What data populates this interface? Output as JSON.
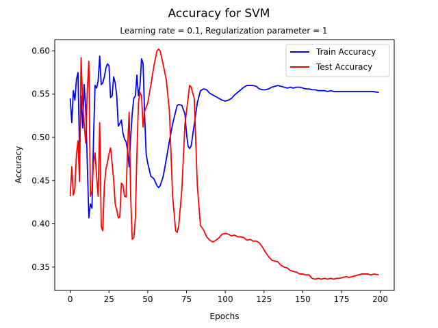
{
  "chart_data": {
    "type": "line",
    "title": "Accuracy for SVM",
    "subtitle": "Learning rate = 0.1, Regularization parameter = 1",
    "xlabel": "Epochs",
    "ylabel": "Accuracy",
    "xlim": [
      -10,
      209
    ],
    "ylim": [
      0.323,
      0.613
    ],
    "xticks": [
      0,
      25,
      50,
      75,
      100,
      125,
      150,
      175,
      200
    ],
    "yticks": [
      0.35,
      0.4,
      0.45,
      0.5,
      0.55,
      0.6
    ],
    "ytick_labels": [
      "0.35",
      "0.40",
      "0.45",
      "0.50",
      "0.55",
      "0.60"
    ],
    "grid": false,
    "legend_position": "top-right",
    "series": [
      {
        "name": "Train Accuracy",
        "color": "#0000ff",
        "points": [
          [
            0,
            0.545
          ],
          [
            1,
            0.517
          ],
          [
            2,
            0.554
          ],
          [
            3,
            0.543
          ],
          [
            4,
            0.567
          ],
          [
            5,
            0.575
          ],
          [
            6,
            0.482
          ],
          [
            7,
            0.548
          ],
          [
            8,
            0.511
          ],
          [
            9,
            0.561
          ],
          [
            10,
            0.532
          ],
          [
            11,
            0.47
          ],
          [
            12,
            0.407
          ],
          [
            13,
            0.423
          ],
          [
            14,
            0.418
          ],
          [
            15,
            0.497
          ],
          [
            16,
            0.56
          ],
          [
            17,
            0.557
          ],
          [
            18,
            0.565
          ],
          [
            19,
            0.594
          ],
          [
            20,
            0.561
          ],
          [
            21,
            0.563
          ],
          [
            22,
            0.57
          ],
          [
            23,
            0.58
          ],
          [
            24,
            0.585
          ],
          [
            25,
            0.583
          ],
          [
            26,
            0.546
          ],
          [
            27,
            0.548
          ],
          [
            28,
            0.57
          ],
          [
            29,
            0.563
          ],
          [
            30,
            0.548
          ],
          [
            31,
            0.513
          ],
          [
            32,
            0.516
          ],
          [
            33,
            0.52
          ],
          [
            34,
            0.505
          ],
          [
            35,
            0.498
          ],
          [
            36,
            0.495
          ],
          [
            37,
            0.485
          ],
          [
            38,
            0.466
          ],
          [
            39,
            0.5
          ],
          [
            40,
            0.528
          ],
          [
            41,
            0.545
          ],
          [
            42,
            0.548
          ],
          [
            43,
            0.572
          ],
          [
            44,
            0.548
          ],
          [
            45,
            0.56
          ],
          [
            46,
            0.591
          ],
          [
            47,
            0.585
          ],
          [
            48,
            0.525
          ],
          [
            49,
            0.48
          ],
          [
            50,
            0.47
          ],
          [
            52,
            0.455
          ],
          [
            54,
            0.452
          ],
          [
            56,
            0.444
          ],
          [
            57,
            0.442
          ],
          [
            58,
            0.444
          ],
          [
            60,
            0.455
          ],
          [
            62,
            0.475
          ],
          [
            64,
            0.496
          ],
          [
            66,
            0.515
          ],
          [
            68,
            0.53
          ],
          [
            69,
            0.537
          ],
          [
            70,
            0.538
          ],
          [
            72,
            0.537
          ],
          [
            74,
            0.527
          ],
          [
            75,
            0.505
          ],
          [
            76,
            0.49
          ],
          [
            77,
            0.487
          ],
          [
            78,
            0.49
          ],
          [
            80,
            0.515
          ],
          [
            82,
            0.54
          ],
          [
            84,
            0.554
          ],
          [
            86,
            0.556
          ],
          [
            88,
            0.555
          ],
          [
            90,
            0.551
          ],
          [
            92,
            0.549
          ],
          [
            94,
            0.547
          ],
          [
            96,
            0.545
          ],
          [
            98,
            0.543
          ],
          [
            100,
            0.542
          ],
          [
            102,
            0.543
          ],
          [
            104,
            0.545
          ],
          [
            106,
            0.549
          ],
          [
            108,
            0.552
          ],
          [
            110,
            0.555
          ],
          [
            112,
            0.558
          ],
          [
            114,
            0.56
          ],
          [
            116,
            0.56
          ],
          [
            118,
            0.56
          ],
          [
            120,
            0.559
          ],
          [
            122,
            0.556
          ],
          [
            124,
            0.555
          ],
          [
            126,
            0.555
          ],
          [
            128,
            0.556
          ],
          [
            130,
            0.558
          ],
          [
            132,
            0.559
          ],
          [
            134,
            0.56
          ],
          [
            136,
            0.559
          ],
          [
            138,
            0.558
          ],
          [
            140,
            0.557
          ],
          [
            142,
            0.558
          ],
          [
            144,
            0.557
          ],
          [
            146,
            0.558
          ],
          [
            148,
            0.558
          ],
          [
            150,
            0.557
          ],
          [
            152,
            0.556
          ],
          [
            154,
            0.556
          ],
          [
            156,
            0.555
          ],
          [
            158,
            0.555
          ],
          [
            160,
            0.554
          ],
          [
            162,
            0.554
          ],
          [
            164,
            0.554
          ],
          [
            166,
            0.553
          ],
          [
            168,
            0.554
          ],
          [
            170,
            0.553
          ],
          [
            175,
            0.553
          ],
          [
            180,
            0.553
          ],
          [
            185,
            0.553
          ],
          [
            190,
            0.553
          ],
          [
            195,
            0.553
          ],
          [
            199,
            0.552
          ]
        ]
      },
      {
        "name": "Test Accuracy",
        "color": "#ff0000",
        "points": [
          [
            0,
            0.432
          ],
          [
            1,
            0.466
          ],
          [
            2,
            0.433
          ],
          [
            3,
            0.441
          ],
          [
            4,
            0.48
          ],
          [
            5,
            0.496
          ],
          [
            6,
            0.449
          ],
          [
            7,
            0.592
          ],
          [
            8,
            0.54
          ],
          [
            9,
            0.515
          ],
          [
            10,
            0.493
          ],
          [
            11,
            0.555
          ],
          [
            12,
            0.588
          ],
          [
            13,
            0.432
          ],
          [
            14,
            0.438
          ],
          [
            15,
            0.47
          ],
          [
            16,
            0.482
          ],
          [
            17,
            0.455
          ],
          [
            18,
            0.432
          ],
          [
            19,
            0.517
          ],
          [
            20,
            0.397
          ],
          [
            21,
            0.392
          ],
          [
            22,
            0.444
          ],
          [
            23,
            0.463
          ],
          [
            24,
            0.471
          ],
          [
            25,
            0.481
          ],
          [
            26,
            0.488
          ],
          [
            27,
            0.47
          ],
          [
            28,
            0.451
          ],
          [
            29,
            0.423
          ],
          [
            30,
            0.416
          ],
          [
            31,
            0.407
          ],
          [
            32,
            0.408
          ],
          [
            33,
            0.447
          ],
          [
            34,
            0.445
          ],
          [
            35,
            0.432
          ],
          [
            36,
            0.431
          ],
          [
            37,
            0.488
          ],
          [
            38,
            0.529
          ],
          [
            39,
            0.43
          ],
          [
            40,
            0.382
          ],
          [
            41,
            0.384
          ],
          [
            42,
            0.405
          ],
          [
            43,
            0.48
          ],
          [
            44,
            0.54
          ],
          [
            45,
            0.552
          ],
          [
            46,
            0.548
          ],
          [
            47,
            0.512
          ],
          [
            48,
            0.53
          ],
          [
            50,
            0.54
          ],
          [
            52,
            0.56
          ],
          [
            54,
            0.583
          ],
          [
            56,
            0.6
          ],
          [
            57,
            0.602
          ],
          [
            58,
            0.6
          ],
          [
            60,
            0.584
          ],
          [
            62,
            0.566
          ],
          [
            64,
            0.53
          ],
          [
            66,
            0.433
          ],
          [
            68,
            0.392
          ],
          [
            69,
            0.39
          ],
          [
            70,
            0.398
          ],
          [
            72,
            0.44
          ],
          [
            74,
            0.515
          ],
          [
            76,
            0.545
          ],
          [
            77,
            0.56
          ],
          [
            78,
            0.558
          ],
          [
            80,
            0.545
          ],
          [
            82,
            0.444
          ],
          [
            84,
            0.398
          ],
          [
            86,
            0.393
          ],
          [
            88,
            0.385
          ],
          [
            90,
            0.381
          ],
          [
            92,
            0.379
          ],
          [
            94,
            0.381
          ],
          [
            96,
            0.384
          ],
          [
            98,
            0.388
          ],
          [
            100,
            0.389
          ],
          [
            102,
            0.388
          ],
          [
            104,
            0.386
          ],
          [
            106,
            0.387
          ],
          [
            108,
            0.385
          ],
          [
            110,
            0.385
          ],
          [
            112,
            0.384
          ],
          [
            114,
            0.381
          ],
          [
            116,
            0.382
          ],
          [
            118,
            0.38
          ],
          [
            120,
            0.38
          ],
          [
            122,
            0.378
          ],
          [
            124,
            0.373
          ],
          [
            126,
            0.367
          ],
          [
            128,
            0.362
          ],
          [
            130,
            0.358
          ],
          [
            132,
            0.357
          ],
          [
            134,
            0.356
          ],
          [
            136,
            0.352
          ],
          [
            138,
            0.35
          ],
          [
            140,
            0.349
          ],
          [
            142,
            0.346
          ],
          [
            144,
            0.345
          ],
          [
            146,
            0.344
          ],
          [
            148,
            0.342
          ],
          [
            150,
            0.342
          ],
          [
            152,
            0.341
          ],
          [
            154,
            0.341
          ],
          [
            156,
            0.337
          ],
          [
            158,
            0.336
          ],
          [
            160,
            0.337
          ],
          [
            162,
            0.336
          ],
          [
            164,
            0.337
          ],
          [
            166,
            0.336
          ],
          [
            168,
            0.337
          ],
          [
            170,
            0.336
          ],
          [
            172,
            0.337
          ],
          [
            174,
            0.337
          ],
          [
            176,
            0.338
          ],
          [
            178,
            0.339
          ],
          [
            180,
            0.338
          ],
          [
            182,
            0.339
          ],
          [
            184,
            0.34
          ],
          [
            186,
            0.341
          ],
          [
            188,
            0.342
          ],
          [
            190,
            0.342
          ],
          [
            192,
            0.342
          ],
          [
            194,
            0.341
          ],
          [
            196,
            0.342
          ],
          [
            199,
            0.341
          ]
        ]
      }
    ]
  }
}
